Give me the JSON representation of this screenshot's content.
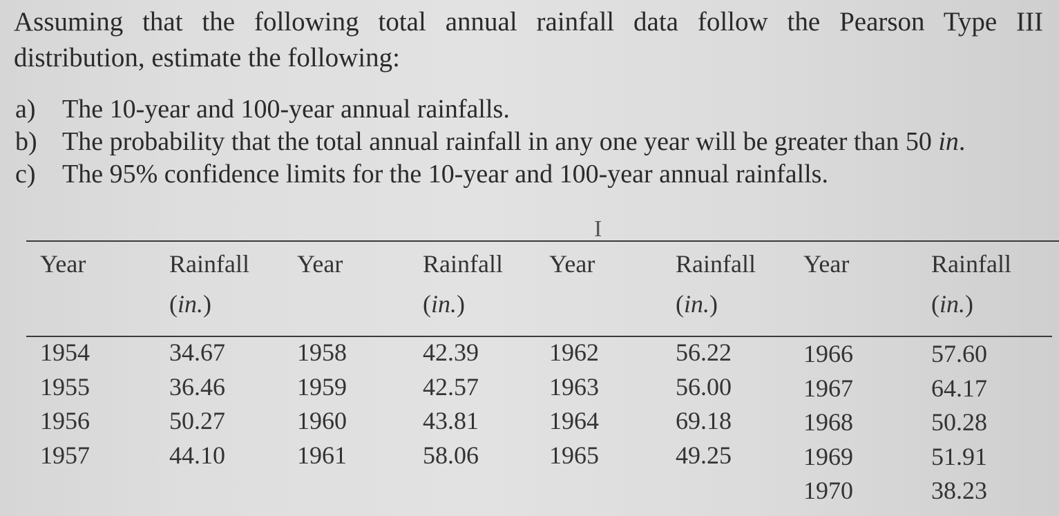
{
  "problem": {
    "intro_line1": "Assuming that the following total annual rainfall data follow the Pearson Type III",
    "intro_line2": "distribution, estimate the following:",
    "items": [
      {
        "letter": "a)",
        "text": "The 10-year and 100-year annual rainfalls."
      },
      {
        "letter": "b)",
        "text": "The probability that the total annual rainfall in any one year will be greater than 50",
        "unit": "in",
        "end": "."
      },
      {
        "letter": "c)",
        "text": "The 95% confidence limits for the 10-year and 100-year annual rainfalls."
      }
    ]
  },
  "table": {
    "headers": {
      "year": "Year",
      "rainfall": "Rainfall",
      "unit_open": "(",
      "unit": "in.",
      "unit_close": ")"
    },
    "groups": [
      {
        "rows": [
          {
            "year": "1954",
            "rainfall": "34.67"
          },
          {
            "year": "1955",
            "rainfall": "36.46"
          },
          {
            "year": "1956",
            "rainfall": "50.27"
          },
          {
            "year": "1957",
            "rainfall": "44.10"
          }
        ]
      },
      {
        "rows": [
          {
            "year": "1958",
            "rainfall": "42.39"
          },
          {
            "year": "1959",
            "rainfall": "42.57"
          },
          {
            "year": "1960",
            "rainfall": "43.81"
          },
          {
            "year": "1961",
            "rainfall": "58.06"
          }
        ]
      },
      {
        "rows": [
          {
            "year": "1962",
            "rainfall": "56.22"
          },
          {
            "year": "1963",
            "rainfall": "56.00"
          },
          {
            "year": "1964",
            "rainfall": "69.18"
          },
          {
            "year": "1965",
            "rainfall": "49.25"
          }
        ]
      },
      {
        "rows": [
          {
            "year": "1966",
            "rainfall": "57.60"
          },
          {
            "year": "1967",
            "rainfall": "64.17"
          },
          {
            "year": "1968",
            "rainfall": "50.28"
          },
          {
            "year": "1969",
            "rainfall": "51.91"
          },
          {
            "year": "1970",
            "rainfall": "38.23"
          }
        ]
      }
    ]
  },
  "cursor_glyph": "I"
}
